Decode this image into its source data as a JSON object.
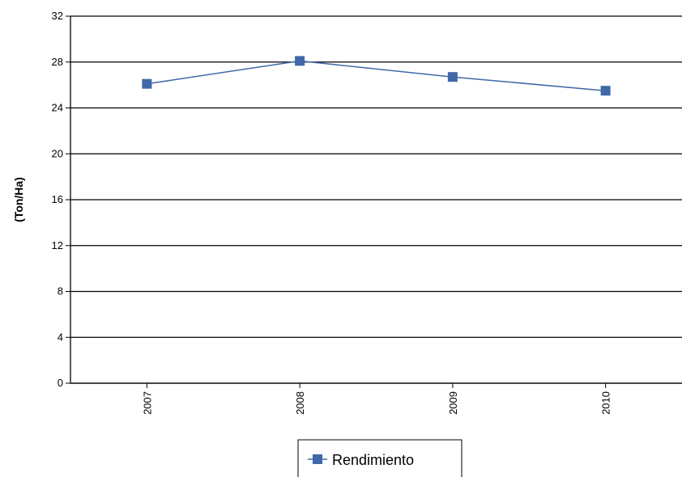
{
  "chart_data": {
    "type": "line",
    "categories": [
      "2007",
      "2008",
      "2009",
      "2010"
    ],
    "series": [
      {
        "name": "Rendimiento",
        "values": [
          26.1,
          28.1,
          26.7,
          25.5
        ],
        "color": "#3f68a8",
        "marker": "square"
      }
    ],
    "title": "",
    "xlabel": "",
    "ylabel": "(Ton/Ha)",
    "ylim": [
      0,
      32
    ],
    "yticks": [
      0,
      4,
      8,
      12,
      16,
      20,
      24,
      28,
      32
    ],
    "grid": true,
    "legend_position": "bottom"
  }
}
